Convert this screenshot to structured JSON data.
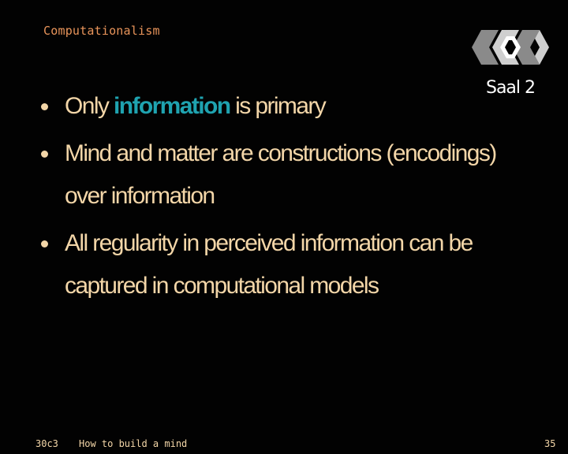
{
  "slide": {
    "title": "Computationalism",
    "bullets": [
      {
        "before": "Only ",
        "highlight": "information",
        "after": " is primary"
      },
      {
        "text": "Mind and matter are constructions (encodings) over information"
      },
      {
        "text": "All regularity in perceived information can be captured in computational models"
      }
    ]
  },
  "logo": {
    "icon": "saal-logo-icon",
    "label": "Saal 2"
  },
  "footer": {
    "event": "30c3",
    "talk": "How to build a mind",
    "page": "35"
  },
  "colors": {
    "background": "#020202",
    "title": "#e8945a",
    "text": "#f3d6a8",
    "highlight": "#1fa3b0"
  }
}
